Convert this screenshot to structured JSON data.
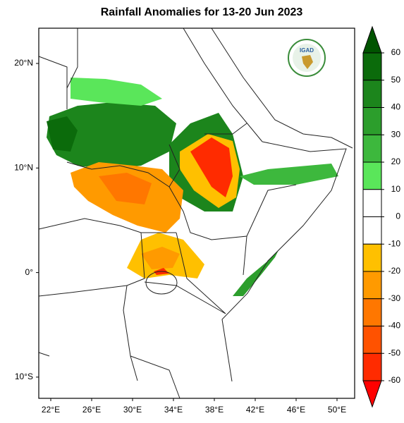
{
  "title": "Rainfall Anomalies for 13-20 Jun 2023",
  "logo": "IGAD",
  "lon_labels": [
    "22°E",
    "26°E",
    "30°E",
    "34°E",
    "38°E",
    "42°E",
    "46°E",
    "50°E"
  ],
  "lat_labels": [
    "20°N",
    "10°N",
    "0°",
    "10°S"
  ],
  "colorbar": {
    "ticks": [
      60,
      50,
      40,
      30,
      20,
      10,
      0,
      -10,
      -20,
      -30,
      -40,
      -50,
      -60
    ],
    "colors": [
      "#0b6b0b",
      "#1c851c",
      "#2c9e2c",
      "#3db83d",
      "#5ae65a",
      "#ffffff",
      "#ffffff",
      "#ffc000",
      "#ff9a00",
      "#ff7700",
      "#ff5200",
      "#ff2b00"
    ],
    "over_color": "#005400",
    "under_color": "#ff0000"
  }
}
